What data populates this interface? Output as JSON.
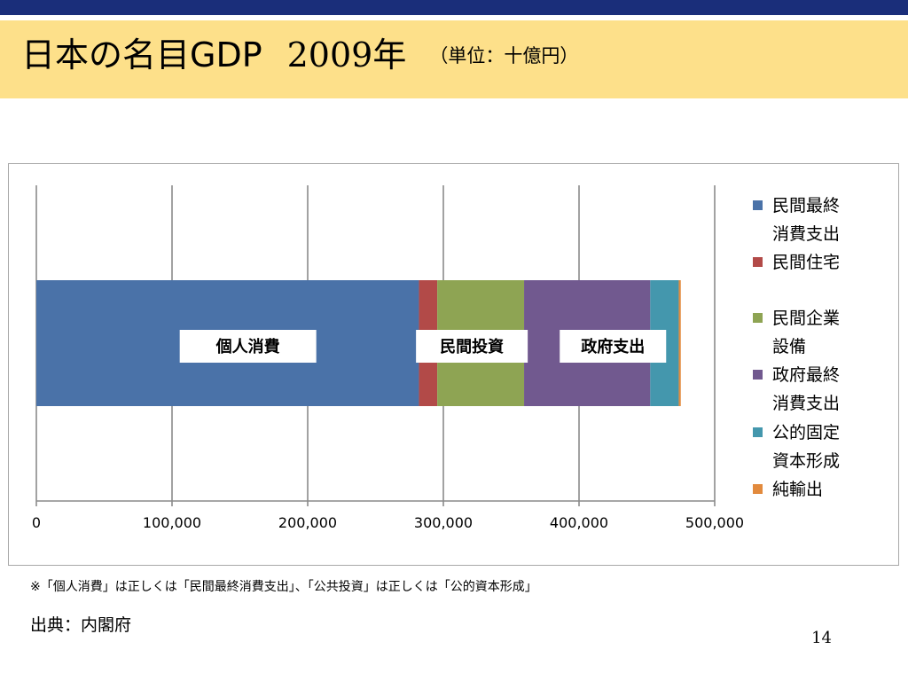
{
  "slide": {
    "title_main": "日本の名目GDP",
    "title_year": "2009年",
    "title_unit": "（単位：十億円）",
    "note": "※「個人消費」は正しくは「民間最終消費支出」、「公共投資」は正しくは「公的資本形成」",
    "source": "出典：内閣府",
    "page_number": "14"
  },
  "chart_data": {
    "type": "bar",
    "orientation": "horizontal",
    "stacked": true,
    "xlim": [
      0,
      500000
    ],
    "xticks": [
      "0",
      "100,000",
      "200,000",
      "300,000",
      "400,000",
      "500,000"
    ],
    "xtick_values": [
      0,
      100000,
      200000,
      300000,
      400000,
      500000
    ],
    "grid": true,
    "legend_position": "right",
    "series": [
      {
        "name": "民間最終消費支出",
        "value": 282000,
        "color": "#4a72a8"
      },
      {
        "name": "民間住宅",
        "value": 13500,
        "color": "#b24a48"
      },
      {
        "name": "民間企業設備",
        "value": 64000,
        "color": "#8ea453"
      },
      {
        "name": "政府最終消費支出",
        "value": 93000,
        "color": "#71598f"
      },
      {
        "name": "公的固定資本形成",
        "value": 21000,
        "color": "#4497ad"
      },
      {
        "name": "純輸出",
        "value": 1500,
        "color": "#e28a3d"
      }
    ],
    "legend_labels": [
      [
        "民間最終",
        "消費支出"
      ],
      [
        "民間住宅"
      ],
      [
        "民間企業",
        "設備"
      ],
      [
        "政府最終",
        "消費支出"
      ],
      [
        "公的固定",
        "資本形成"
      ],
      [
        "純輸出"
      ]
    ],
    "annotations": [
      {
        "text": "個人消費",
        "at": 156000
      },
      {
        "text": "民間投資",
        "at": 321000
      },
      {
        "text": "政府支出",
        "at": 425000
      }
    ]
  }
}
